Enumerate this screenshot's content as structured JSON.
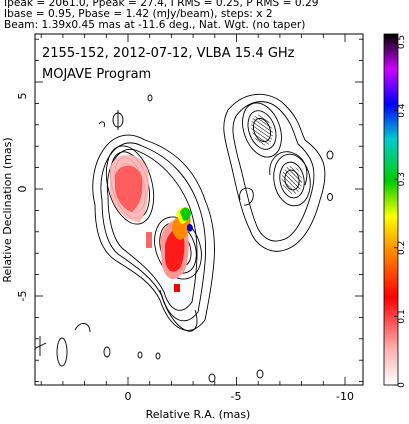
{
  "header": {
    "line1": "Ipeak = 2061.0, Ppeak = 27.4, I RMS = 0.25, P RMS = 0.29",
    "line2": "Ibase = 0.95, Pbase = 1.42 (mJy/beam), steps: x 2",
    "line3": "Beam: 1.39x0.45 mas at -11.6 deg., Nat. Wgt. (no taper)"
  },
  "plot": {
    "title": "2155-152, 2012-07-12, VLBA 15.4 GHz",
    "subtitle": "MOJAVE Program",
    "xlabel": "Relative R.A. (mas)",
    "ylabel": "Relative Declination (mas)",
    "xticks": [
      "0",
      "-5",
      "-10"
    ],
    "yticks": [
      "5",
      "0",
      "-5"
    ],
    "colorbar_ticks": [
      "0.5",
      "0.4",
      "0.3",
      "0.2",
      "0.1",
      "0"
    ],
    "colorbar_range": [
      0,
      0.5
    ],
    "colorbar_colors": [
      "#ffffff",
      "#ff9999",
      "#ff0000",
      "#ff8800",
      "#ffff00",
      "#00cc00",
      "#00cccc",
      "#0000ff",
      "#cc00ff",
      "#000000"
    ]
  }
}
